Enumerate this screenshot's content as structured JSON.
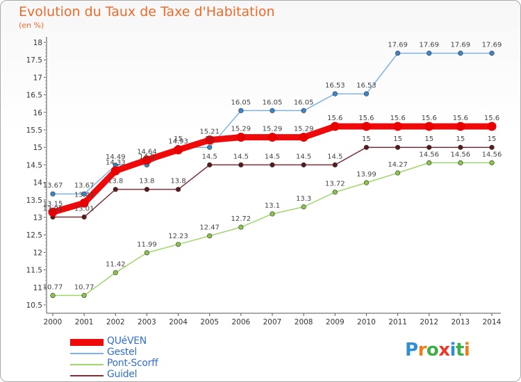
{
  "title": "Evolution du Taux de Taxe d'Habitation",
  "unit_label": "(en %)",
  "logo": {
    "text": "Proxiti",
    "letter_colors": [
      "#2f8fd6",
      "#ee7d1c",
      "#3fae49",
      "#e63a2e",
      "#2f8fd6",
      "#3fae49",
      "#ee7d1c"
    ]
  },
  "chart_data": {
    "type": "line",
    "title": "Evolution du Taux de Taxe d'Habitation",
    "ylabel": "(en %)",
    "xlabel": "",
    "x": [
      "2000",
      "2001",
      "2002",
      "2003",
      "2004",
      "2005",
      "2006",
      "2007",
      "2008",
      "2009",
      "2010",
      "2011",
      "2012",
      "2013",
      "2014"
    ],
    "ylim": [
      10.5,
      18
    ],
    "yticks": [
      "10.5",
      "11",
      "11.5",
      "12",
      "12.5",
      "13",
      "13.5",
      "14",
      "14.5",
      "15",
      "15.5",
      "16",
      "16.5",
      "17",
      "17.5",
      "18"
    ],
    "grid": false,
    "legend_position": "bottom-left",
    "series": [
      {
        "name": "Pont-Scorff",
        "color": "#9ed66a",
        "marker_color": "#8bc34a",
        "values": [
          10.77,
          10.77,
          11.42,
          11.99,
          12.23,
          12.47,
          12.72,
          13.1,
          13.3,
          13.72,
          13.99,
          14.27,
          14.56,
          14.56,
          14.56
        ],
        "labels": [
          "10.77",
          "10.77",
          "11.42",
          "11.99",
          "12.23",
          "12.47",
          "12.72",
          "13.1",
          "13.3",
          "13.72",
          "13.99",
          "14.27",
          "14.56",
          "14.56",
          "14.56"
        ]
      },
      {
        "name": "Guidel",
        "color": "#7a2f3a",
        "marker_color": "#5a1a1a",
        "values": [
          13.01,
          13.01,
          13.8,
          13.8,
          13.8,
          14.5,
          14.5,
          14.5,
          14.5,
          14.5,
          15,
          15,
          15,
          15,
          15
        ],
        "labels": [
          "13.01",
          "13.01",
          "13.8",
          "13.8",
          "13.8",
          "14.5",
          "14.5",
          "14.5",
          "14.5",
          "14.5",
          "15",
          "15",
          "15",
          "15",
          "15"
        ]
      },
      {
        "name": "Gestel",
        "color": "#7fb2e0",
        "marker_color": "#3a86c8",
        "values": [
          13.67,
          13.67,
          14.49,
          14.5,
          15.0,
          15.0,
          16.05,
          16.05,
          16.05,
          16.53,
          16.53,
          17.69,
          17.69,
          17.69,
          17.69
        ],
        "labels": [
          "13.67",
          "13.67",
          "14.49",
          "14.5",
          "15",
          "15",
          "16.05",
          "16.05",
          "16.05",
          "16.53",
          "16.53",
          "17.69",
          "17.69",
          "17.69",
          "17.69"
        ]
      },
      {
        "name": "QUéVEN",
        "color": "#ee0a0a",
        "marker_color": "#e80000",
        "values": [
          13.15,
          13.41,
          14.33,
          14.64,
          14.93,
          15.21,
          15.29,
          15.29,
          15.29,
          15.6,
          15.6,
          15.6,
          15.6,
          15.6,
          15.6
        ],
        "labels": [
          "13.15",
          "13.41",
          "14.33",
          "14.64",
          "14.93",
          "15.21",
          "15.29",
          "15.29",
          "15.29",
          "15.6",
          "15.6",
          "15.6",
          "15.6",
          "15.6",
          "15.6"
        ]
      }
    ]
  },
  "legend": [
    {
      "name": "QUéVEN",
      "color": "#ee0a0a",
      "text_color": "#2f6fd6",
      "thick": true
    },
    {
      "name": "Gestel",
      "color": "#7fb2e0",
      "text_color": "#2f6fd6",
      "thick": false
    },
    {
      "name": "Pont-Scorff",
      "color": "#9ed66a",
      "text_color": "#2f6fd6",
      "thick": false
    },
    {
      "name": "Guidel",
      "color": "#7a2f3a",
      "text_color": "#2f6fd6",
      "thick": false
    }
  ]
}
